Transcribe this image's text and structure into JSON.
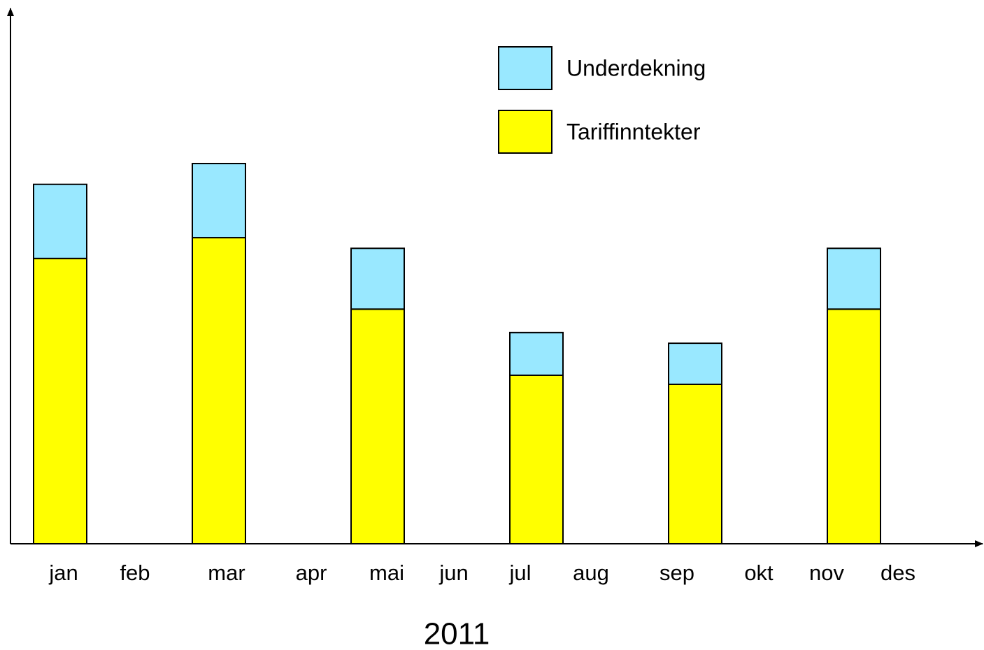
{
  "chart_data": {
    "type": "stacked_bar",
    "x_label": "2011",
    "categories": [
      "jan",
      "feb",
      "mar",
      "apr",
      "mai",
      "jun",
      "jul",
      "aug",
      "sep",
      "okt",
      "nov",
      "des"
    ],
    "series": [
      {
        "name": "Tariffinntekter",
        "color": "#ffff00",
        "values": [
          53.5,
          null,
          57.4,
          null,
          44.0,
          null,
          31.6,
          null,
          29.9,
          null,
          44.0,
          null
        ]
      },
      {
        "name": "Underdekning",
        "color": "#99e8ff",
        "values": [
          13.9,
          null,
          13.9,
          null,
          11.4,
          null,
          8.0,
          null,
          7.7,
          null,
          11.4,
          null
        ]
      }
    ],
    "ylim": [
      0,
      100
    ],
    "legend": "upper right"
  }
}
